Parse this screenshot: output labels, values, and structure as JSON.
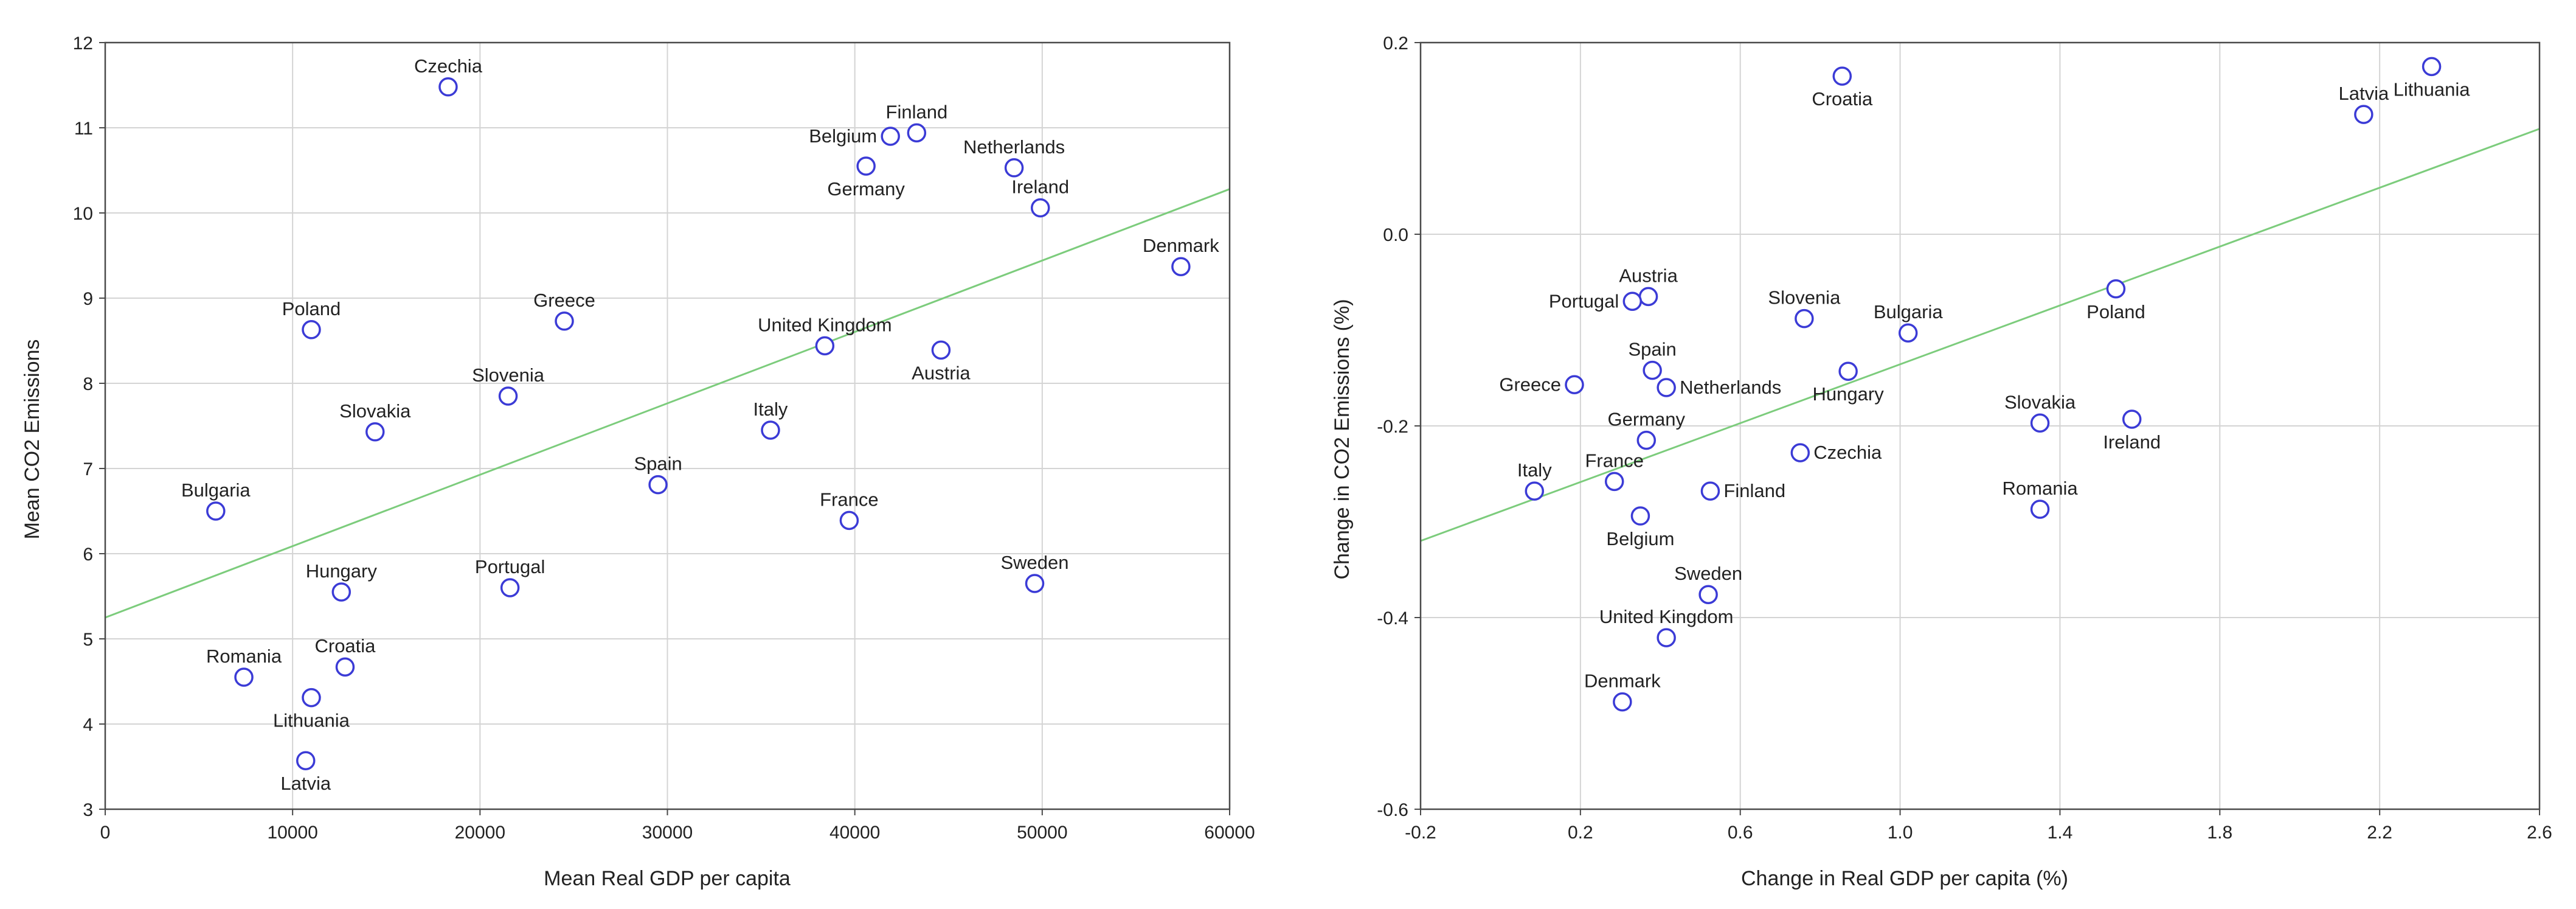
{
  "colors": {
    "marker": "#3b3bd6",
    "fit_line": "#7ccc7c",
    "grid": "#d4d4d4",
    "frame": "#4a4a4a"
  },
  "chart_data": [
    {
      "type": "scatter",
      "title": "",
      "xlabel": "Mean Real GDP per capita",
      "ylabel": "Mean CO2 Emissions",
      "xlim": [
        0,
        60000
      ],
      "ylim": [
        3,
        12
      ],
      "xticks": [
        0,
        10000,
        20000,
        30000,
        40000,
        50000,
        60000
      ],
      "yticks": [
        3,
        4,
        5,
        6,
        7,
        8,
        9,
        10,
        11,
        12
      ],
      "grid": true,
      "fit_line": {
        "x": [
          0,
          60000
        ],
        "y": [
          5.25,
          10.28
        ]
      },
      "points": [
        {
          "label": "Czechia",
          "x": 18300,
          "y": 11.48,
          "pos": "above"
        },
        {
          "label": "Finland",
          "x": 43300,
          "y": 10.94,
          "pos": "above"
        },
        {
          "label": "Belgium",
          "x": 41900,
          "y": 10.9,
          "pos": "left"
        },
        {
          "label": "Germany",
          "x": 40600,
          "y": 10.55,
          "pos": "below"
        },
        {
          "label": "Netherlands",
          "x": 48500,
          "y": 10.53,
          "pos": "above"
        },
        {
          "label": "Ireland",
          "x": 49900,
          "y": 10.06,
          "pos": "above"
        },
        {
          "label": "Denmark",
          "x": 57400,
          "y": 9.37,
          "pos": "above"
        },
        {
          "label": "Poland",
          "x": 11000,
          "y": 8.63,
          "pos": "above"
        },
        {
          "label": "Greece",
          "x": 24500,
          "y": 8.73,
          "pos": "above"
        },
        {
          "label": "United Kingdom",
          "x": 38400,
          "y": 8.44,
          "pos": "above"
        },
        {
          "label": "Austria",
          "x": 44600,
          "y": 8.39,
          "pos": "below"
        },
        {
          "label": "Slovenia",
          "x": 21500,
          "y": 7.85,
          "pos": "above"
        },
        {
          "label": "Slovakia",
          "x": 14400,
          "y": 7.43,
          "pos": "above"
        },
        {
          "label": "Italy",
          "x": 35500,
          "y": 7.45,
          "pos": "above"
        },
        {
          "label": "Spain",
          "x": 29500,
          "y": 6.81,
          "pos": "above"
        },
        {
          "label": "Bulgaria",
          "x": 5900,
          "y": 6.5,
          "pos": "above"
        },
        {
          "label": "France",
          "x": 39700,
          "y": 6.39,
          "pos": "above"
        },
        {
          "label": "Hungary",
          "x": 12600,
          "y": 5.55,
          "pos": "above"
        },
        {
          "label": "Portugal",
          "x": 21600,
          "y": 5.6,
          "pos": "above"
        },
        {
          "label": "Sweden",
          "x": 49600,
          "y": 5.65,
          "pos": "above"
        },
        {
          "label": "Romania",
          "x": 7400,
          "y": 4.55,
          "pos": "above"
        },
        {
          "label": "Croatia",
          "x": 12800,
          "y": 4.67,
          "pos": "above"
        },
        {
          "label": "Lithuania",
          "x": 11000,
          "y": 4.31,
          "pos": "below"
        },
        {
          "label": "Latvia",
          "x": 10700,
          "y": 3.57,
          "pos": "below"
        }
      ]
    },
    {
      "type": "scatter",
      "title": "",
      "xlabel": "Change in Real GDP per capita (%)",
      "ylabel": "Change in CO2 Emissions (%)",
      "xlim": [
        -0.2,
        2.6
      ],
      "ylim": [
        -0.6,
        0.2
      ],
      "xticks": [
        -0.2,
        0.2,
        0.6,
        1.0,
        1.4,
        1.8,
        2.2,
        2.6
      ],
      "xtick_labels": [
        "-0.2",
        "0.2",
        "0.6",
        "1.0",
        "1.4",
        "1.8",
        "2.2",
        "2.6"
      ],
      "yticks": [
        -0.6,
        -0.4,
        -0.2,
        0.0,
        0.2
      ],
      "ytick_labels": [
        "-0.6",
        "-0.4",
        "-0.2",
        "0.0",
        "0.2"
      ],
      "grid": true,
      "fit_line": {
        "x": [
          -0.2,
          2.6
        ],
        "y": [
          -0.32,
          0.11
        ]
      },
      "points": [
        {
          "label": "Croatia",
          "x": 0.855,
          "y": 0.165,
          "pos": "below"
        },
        {
          "label": "Latvia",
          "x": 2.16,
          "y": 0.125,
          "pos": "above"
        },
        {
          "label": "Lithuania",
          "x": 2.33,
          "y": 0.175,
          "pos": "below"
        },
        {
          "label": "Austria",
          "x": 0.37,
          "y": -0.065,
          "pos": "above"
        },
        {
          "label": "Portugal",
          "x": 0.33,
          "y": -0.07,
          "pos": "left"
        },
        {
          "label": "Slovenia",
          "x": 0.76,
          "y": -0.088,
          "pos": "above"
        },
        {
          "label": "Bulgaria",
          "x": 1.02,
          "y": -0.103,
          "pos": "above"
        },
        {
          "label": "Poland",
          "x": 1.54,
          "y": -0.057,
          "pos": "below"
        },
        {
          "label": "Spain",
          "x": 0.38,
          "y": -0.142,
          "pos": "above"
        },
        {
          "label": "Netherlands",
          "x": 0.415,
          "y": -0.16,
          "pos": "right"
        },
        {
          "label": "Hungary",
          "x": 0.87,
          "y": -0.143,
          "pos": "below"
        },
        {
          "label": "Greece",
          "x": 0.185,
          "y": -0.157,
          "pos": "left"
        },
        {
          "label": "Germany",
          "x": 0.365,
          "y": -0.215,
          "pos": "above"
        },
        {
          "label": "Slovakia",
          "x": 1.35,
          "y": -0.197,
          "pos": "above"
        },
        {
          "label": "Ireland",
          "x": 1.58,
          "y": -0.193,
          "pos": "below"
        },
        {
          "label": "Czechia",
          "x": 0.75,
          "y": -0.228,
          "pos": "right"
        },
        {
          "label": "Italy",
          "x": 0.085,
          "y": -0.268,
          "pos": "above"
        },
        {
          "label": "France",
          "x": 0.285,
          "y": -0.258,
          "pos": "above"
        },
        {
          "label": "Finland",
          "x": 0.525,
          "y": -0.268,
          "pos": "right"
        },
        {
          "label": "Romania",
          "x": 1.35,
          "y": -0.287,
          "pos": "above"
        },
        {
          "label": "Belgium",
          "x": 0.35,
          "y": -0.294,
          "pos": "below"
        },
        {
          "label": "Sweden",
          "x": 0.52,
          "y": -0.376,
          "pos": "above"
        },
        {
          "label": "United Kingdom",
          "x": 0.415,
          "y": -0.421,
          "pos": "above"
        },
        {
          "label": "Denmark",
          "x": 0.305,
          "y": -0.488,
          "pos": "above"
        }
      ]
    }
  ]
}
